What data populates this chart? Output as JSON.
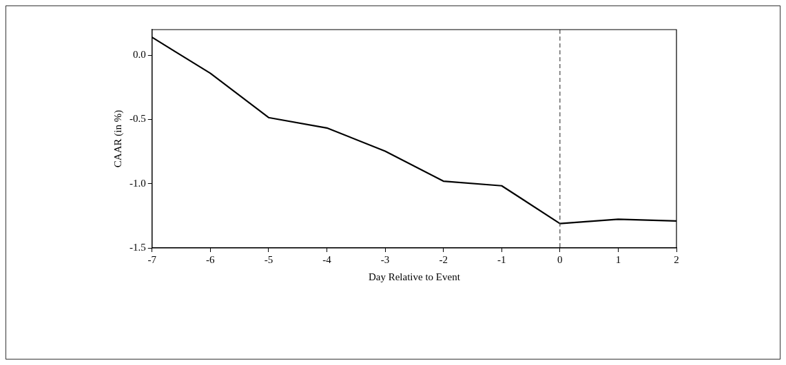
{
  "chart_data": {
    "type": "line",
    "xlabel": "Day Relative to Event",
    "ylabel": "CAAR (in %)",
    "x": [
      -7,
      -6,
      -5,
      -4,
      -3,
      -2,
      -1,
      0,
      1,
      2
    ],
    "series": [
      {
        "color": "#000000",
        "values": [
          0.14,
          -0.14,
          -0.485,
          -0.566,
          -0.746,
          -0.98,
          -1.016,
          -1.31,
          -1.277,
          -1.29
        ]
      }
    ],
    "xlim": [
      -7,
      2
    ],
    "xticks": [
      -7,
      -6,
      -5,
      -4,
      -3,
      -2,
      -1,
      0,
      1,
      2
    ],
    "ylim": [
      -1.5,
      0.2
    ],
    "yticks": [
      {
        "value": -1.5,
        "label": "-1.5"
      },
      {
        "value": -1.0,
        "label": "-1.0"
      },
      {
        "value": -0.5,
        "label": "-0.5"
      },
      {
        "value": 0,
        "label": "0.0"
      }
    ],
    "ref_lines": [
      {
        "axis": "x",
        "value": 0,
        "color": "#444444",
        "line_style": "dashed"
      }
    ],
    "grid": false,
    "legend": false,
    "marker": "none",
    "line_style": "solid"
  }
}
